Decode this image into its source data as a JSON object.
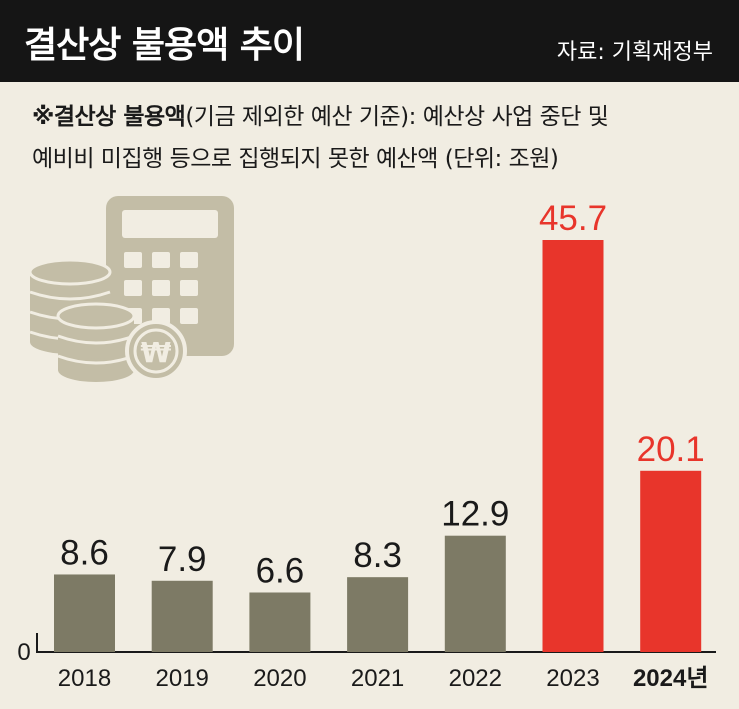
{
  "header": {
    "title": "결산상 불용액 추이",
    "source": "자료: 기획재정부"
  },
  "note": {
    "prefix": "※결산상 불용액",
    "line1_rest": "(기금 제외한 예산 기준): 예산상 사업 중단 및",
    "line2": "예비비 미집행 등으로 집행되지 못한 예산액 (단위: 조원)"
  },
  "colors": {
    "normal_bar": "#7d7a65",
    "highlight_bar": "#e8352b",
    "icon": "#c3bda6",
    "header_bg": "#151515",
    "background": "#f1ede2"
  },
  "chart_data": {
    "type": "bar",
    "title": "결산상 불용액 추이",
    "unit": "조원",
    "categories": [
      "2018",
      "2019",
      "2020",
      "2021",
      "2022",
      "2023",
      "2024년"
    ],
    "values": [
      8.6,
      7.9,
      6.6,
      8.3,
      12.9,
      45.7,
      20.1
    ],
    "highlight": [
      false,
      false,
      false,
      false,
      false,
      true,
      true
    ],
    "ylim": [
      0,
      45.7
    ],
    "zero_label": "0",
    "xlabel": "",
    "ylabel": ""
  }
}
